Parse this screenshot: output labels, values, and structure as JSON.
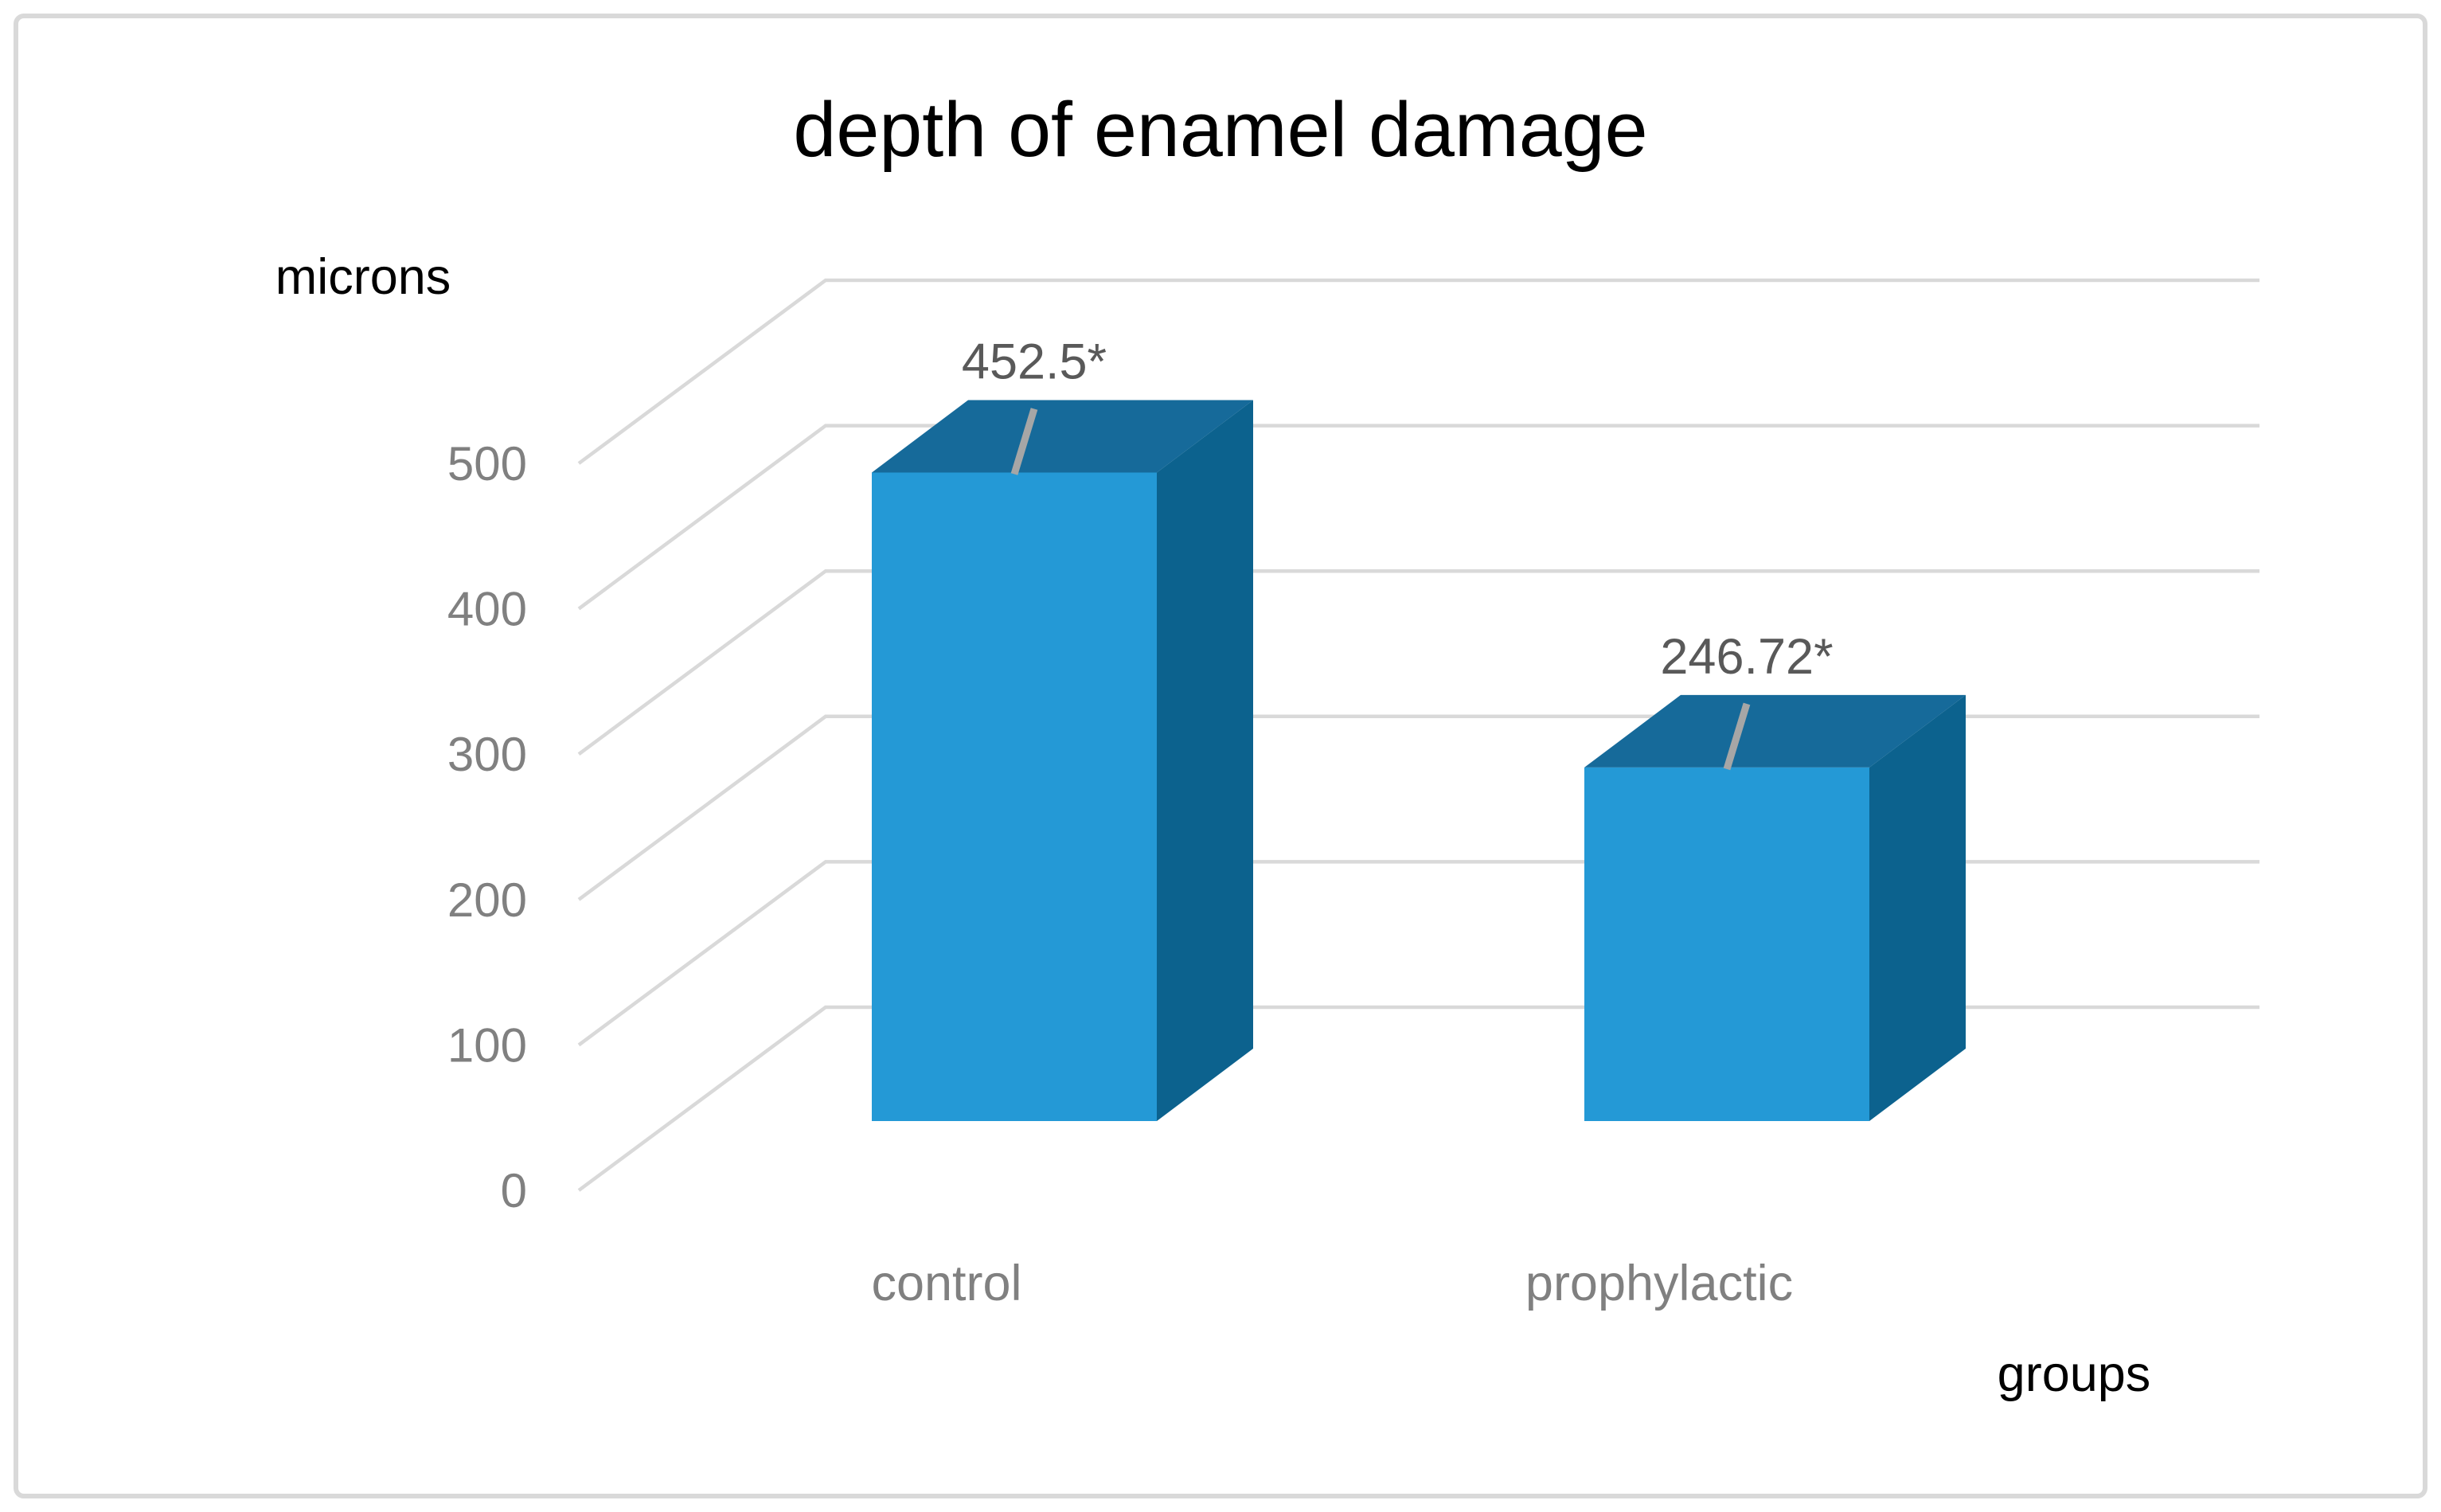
{
  "chart_data": {
    "type": "bar",
    "style": "3d-column",
    "title": "depth of enamel damage",
    "ylabel": "microns",
    "xlabel": "groups",
    "categories": [
      "control",
      "prophylactic"
    ],
    "values": [
      452.5,
      246.72
    ],
    "data_labels": [
      "452.5*",
      "246.72*"
    ],
    "y_ticks": [
      0,
      100,
      200,
      300,
      400,
      500
    ],
    "ylim": [
      0,
      500
    ],
    "grid": true,
    "legend_position": "none",
    "colors": {
      "bar_front": "#2499D6",
      "bar_top": "#166A9A",
      "bar_side": "#0C628E",
      "gridline": "#D9D9D9",
      "frame_border": "#D9D9D9",
      "tick_label": "#808080",
      "category_label": "#808080",
      "data_label": "#595959",
      "leader_line": "#A6A6A6",
      "title_color": "#000000",
      "axis_title_color": "#000000",
      "background": "#FFFFFF"
    }
  }
}
